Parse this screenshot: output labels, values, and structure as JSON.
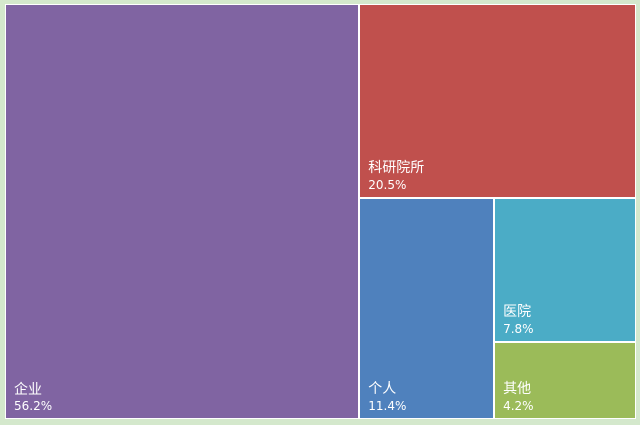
{
  "chart_data": {
    "type": "treemap",
    "title": "",
    "items": [
      {
        "name": "企业",
        "value": 56.2,
        "value_label": "56.2%",
        "color": "#8064a2"
      },
      {
        "name": "科研院所",
        "value": 20.5,
        "value_label": "20.5%",
        "color": "#c0504d"
      },
      {
        "name": "个人",
        "value": 11.4,
        "value_label": "11.4%",
        "color": "#4f81bd"
      },
      {
        "name": "医院",
        "value": 7.8,
        "value_label": "7.8%",
        "color": "#4bacc6"
      },
      {
        "name": "其他",
        "value": 4.2,
        "value_label": "4.2%",
        "color": "#9bbb59"
      }
    ]
  }
}
